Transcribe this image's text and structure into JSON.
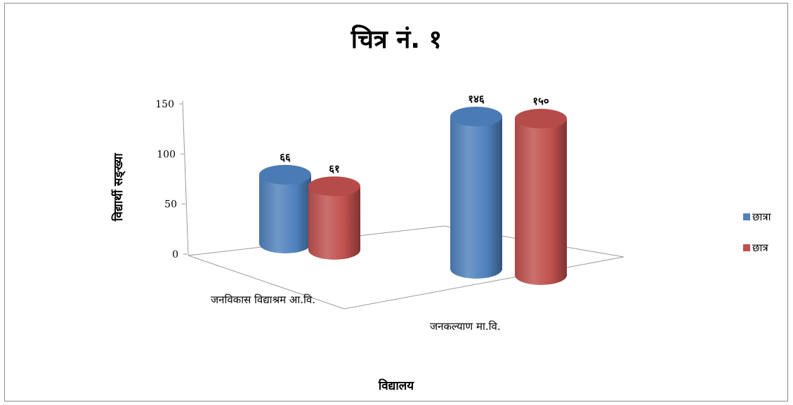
{
  "chart_data": {
    "type": "bar",
    "title": "चित्र नं. १",
    "xlabel": "विद्यालय",
    "ylabel": "विद्यार्थी सङ्ख्या",
    "ylim": [
      0,
      150
    ],
    "yticks": [
      "0",
      "50",
      "100",
      "150"
    ],
    "categories": [
      "जनविकास विद्याश्रम आ.वि.",
      "जनकल्याण मा.वि."
    ],
    "series": [
      {
        "name": "छात्रा",
        "values": [
          66,
          146
        ],
        "labels": [
          "६६",
          "१४६"
        ],
        "color": "#4f81bd"
      },
      {
        "name": "छात्र",
        "values": [
          61,
          150
        ],
        "labels": [
          "६१",
          "१५०"
        ],
        "color": "#c0504d"
      }
    ],
    "legend_position": "right",
    "style": "3d-cylinder"
  }
}
